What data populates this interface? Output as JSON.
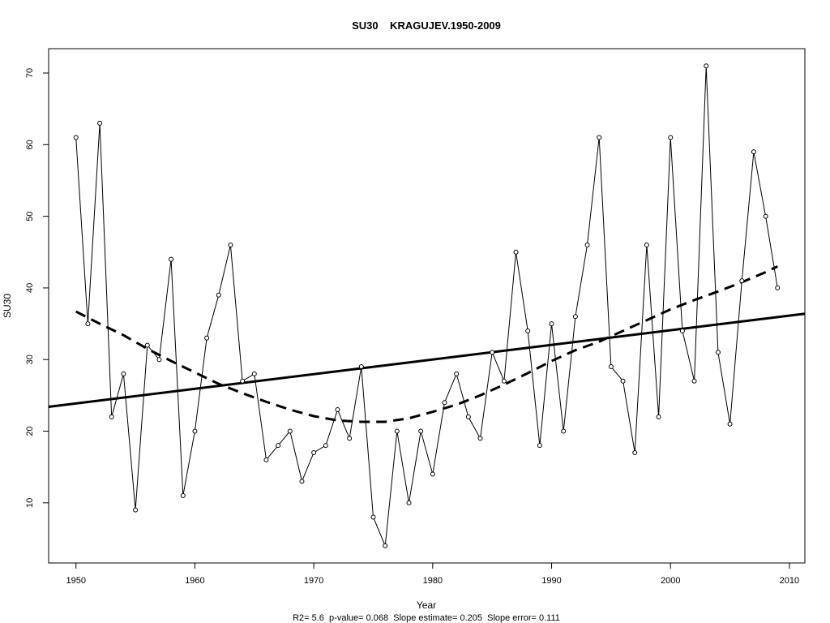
{
  "chart_data": {
    "type": "line",
    "title": "SU30    KRAGUJEV.1950-2009",
    "xlabel": "Year",
    "ylabel": "SU30",
    "footer": "R2= 5.6  p-value= 0.068  Slope estimate= 0.205  Slope error= 0.111",
    "xlim": [
      1947.7,
      2011.3
    ],
    "ylim": [
      1.6,
      73.4
    ],
    "x_ticks": [
      "1950",
      "1960",
      "1970",
      "1980",
      "1990",
      "2000",
      "2010"
    ],
    "y_ticks": [
      "10",
      "20",
      "30",
      "40",
      "50",
      "60",
      "70"
    ],
    "grid": false,
    "series": [
      {
        "style": "line-with-circles",
        "x": [
          1950,
          1951,
          1952,
          1953,
          1954,
          1955,
          1956,
          1957,
          1958,
          1959,
          1960,
          1961,
          1962,
          1963,
          1964,
          1965,
          1966,
          1967,
          1968,
          1969,
          1970,
          1971,
          1972,
          1973,
          1974,
          1975,
          1976,
          1977,
          1978,
          1979,
          1980,
          1981,
          1982,
          1983,
          1984,
          1985,
          1986,
          1987,
          1988,
          1989,
          1990,
          1991,
          1992,
          1993,
          1994,
          1995,
          1996,
          1997,
          1998,
          1999,
          2000,
          2001,
          2002,
          2003,
          2004,
          2005,
          2006,
          2007,
          2008,
          2009
        ],
        "values": [
          61,
          35,
          63,
          22,
          28,
          9,
          32,
          30,
          44,
          11,
          20,
          33,
          39,
          46,
          27,
          28,
          16,
          18,
          20,
          13,
          17,
          18,
          23,
          19,
          29,
          8,
          4,
          20,
          10,
          20,
          14,
          24,
          28,
          22,
          19,
          31,
          27,
          45,
          34,
          18,
          35,
          20,
          36,
          46,
          61,
          29,
          27,
          17,
          46,
          22,
          61,
          34,
          27,
          71,
          31,
          21,
          41,
          59,
          50,
          40
        ]
      },
      {
        "style": "solid-thick",
        "x": [
          1947.7,
          2011.3
        ],
        "values": [
          23.4,
          36.4
        ]
      },
      {
        "style": "dashed-thick",
        "x": [
          1950,
          1952,
          1954,
          1956,
          1958,
          1960,
          1962,
          1964,
          1966,
          1968,
          1970,
          1972,
          1974,
          1976,
          1978,
          1980,
          1982,
          1984,
          1986,
          1988,
          1990,
          1992,
          1994,
          1996,
          1998,
          2000,
          2002,
          2004,
          2006,
          2008,
          2009
        ],
        "values": [
          36.7,
          35.0,
          33.4,
          31.5,
          29.8,
          28.2,
          26.6,
          25.3,
          24.1,
          23.0,
          22.1,
          21.5,
          21.3,
          21.3,
          21.8,
          22.7,
          23.7,
          25.0,
          26.5,
          28.1,
          29.8,
          31.3,
          32.5,
          34.0,
          35.5,
          37.0,
          38.3,
          39.5,
          40.8,
          42.2,
          43.0
        ]
      }
    ]
  }
}
